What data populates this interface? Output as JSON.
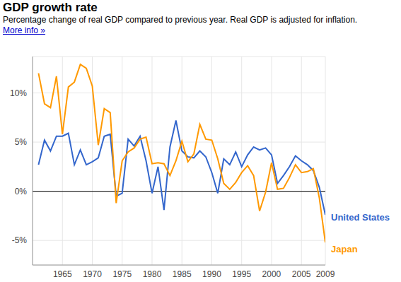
{
  "chart_data": {
    "type": "line",
    "title": "GDP growth rate",
    "subtitle": "Percentage change of real GDP compared to previous year. Real GDP is adjusted for inflation.",
    "annotations": [
      "More info »"
    ],
    "x": [
      1961,
      1962,
      1963,
      1964,
      1965,
      1966,
      1967,
      1968,
      1969,
      1970,
      1971,
      1972,
      1973,
      1974,
      1975,
      1976,
      1977,
      1978,
      1979,
      1980,
      1981,
      1982,
      1983,
      1984,
      1985,
      1986,
      1987,
      1988,
      1989,
      1990,
      1991,
      1992,
      1993,
      1994,
      1995,
      1996,
      1997,
      1998,
      1999,
      2000,
      2001,
      2002,
      2003,
      2004,
      2005,
      2006,
      2007,
      2008,
      2009
    ],
    "series": [
      {
        "name": "United States",
        "color": "#3366cc",
        "values": [
          2.7,
          5.2,
          4.1,
          5.6,
          5.6,
          5.9,
          2.7,
          4.2,
          2.7,
          3.0,
          3.4,
          5.6,
          5.8,
          -0.5,
          -0.2,
          5.3,
          4.6,
          5.6,
          3.1,
          -0.2,
          2.5,
          -1.9,
          4.5,
          7.2,
          4.1,
          3.5,
          3.4,
          4.1,
          3.5,
          1.9,
          -0.2,
          3.3,
          2.7,
          4.0,
          2.5,
          3.7,
          4.5,
          4.2,
          4.4,
          3.7,
          0.8,
          1.6,
          2.5,
          3.6,
          3.1,
          2.7,
          2.1,
          0.4,
          -2.4
        ]
      },
      {
        "name": "Japan",
        "color": "#ff9900",
        "values": [
          12.0,
          8.9,
          8.5,
          11.7,
          5.8,
          10.6,
          11.1,
          12.9,
          12.5,
          10.7,
          4.7,
          8.4,
          8.0,
          -1.2,
          3.1,
          4.0,
          4.4,
          5.3,
          5.5,
          2.8,
          2.9,
          2.8,
          1.6,
          3.1,
          5.1,
          3.0,
          3.8,
          6.8,
          5.3,
          5.2,
          3.3,
          0.8,
          0.2,
          0.9,
          1.9,
          2.6,
          1.6,
          -2.0,
          -0.1,
          2.9,
          0.2,
          0.3,
          1.4,
          2.7,
          1.9,
          2.0,
          2.3,
          -0.7,
          -5.2
        ]
      }
    ],
    "xlim": [
      1960,
      2009
    ],
    "xticks": [
      1965,
      1970,
      1975,
      1980,
      1985,
      1990,
      1995,
      2000,
      2005,
      2009
    ],
    "ylim": [
      -7.5,
      13.7
    ],
    "yticks": [
      {
        "value": -5,
        "label": "-5%"
      },
      {
        "value": 0,
        "label": "0%"
      },
      {
        "value": 5,
        "label": "5%"
      },
      {
        "value": 10,
        "label": "10%"
      }
    ],
    "grid": true
  }
}
